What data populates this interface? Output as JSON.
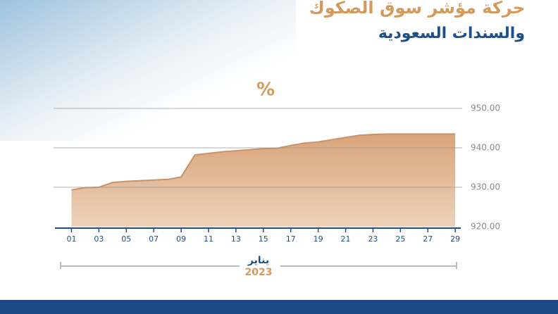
{
  "chart_data": {
    "type": "area",
    "title": "حركة مؤشر سوق الصكوك",
    "subtitle": "والسندات السعودية",
    "y_label": "%",
    "x_label": "يناير",
    "x_label_year": "2023",
    "x": [
      1,
      2,
      3,
      4,
      5,
      8,
      9,
      10,
      11,
      12,
      15,
      16,
      17,
      18,
      19,
      22,
      23,
      24,
      25,
      26,
      29
    ],
    "values": [
      929.3,
      929.9,
      930.0,
      931.2,
      931.5,
      932.0,
      932.6,
      938.2,
      938.6,
      939.0,
      939.8,
      939.9,
      940.6,
      941.2,
      941.5,
      943.2,
      943.4,
      943.5,
      943.5,
      943.5,
      943.5
    ],
    "color": "#c8926a",
    "xlim": [
      0,
      29.3
    ],
    "xticks": [
      {
        "value": 1,
        "label": "01"
      },
      {
        "value": 3,
        "label": "03"
      },
      {
        "value": 5,
        "label": "05"
      },
      {
        "value": 7,
        "label": "07"
      },
      {
        "value": 9,
        "label": "09"
      },
      11,
      13,
      15,
      17,
      19,
      21,
      23,
      25,
      27,
      29
    ],
    "ylim": [
      920,
      950
    ],
    "yticks": [
      {
        "value": 920,
        "label": "920.00"
      },
      {
        "value": 930,
        "label": "930.00"
      },
      {
        "value": 940,
        "label": "940.00"
      },
      {
        "value": 950,
        "label": "950.00"
      }
    ],
    "grid": true
  }
}
